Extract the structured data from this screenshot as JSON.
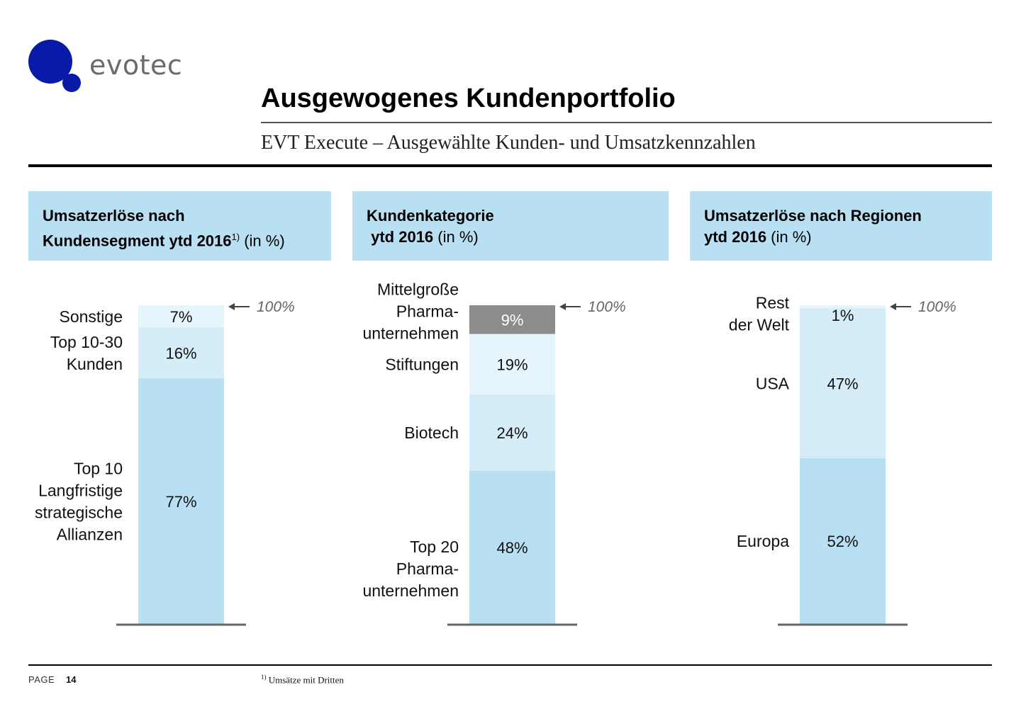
{
  "brand": {
    "name": "evotec",
    "color": "#0a1aa8"
  },
  "title": "Ausgewogenes Kundenportfolio",
  "subtitle": "EVT Execute – Ausgewählte Kunden- und Umsatzkennzahlen",
  "panels": [
    {
      "line1_bold": "Umsatzerlöse nach",
      "line2_bold": "Kundensegment ytd 2016",
      "line2_sup": "1)",
      "line2_rest": " (in %)"
    },
    {
      "line1_bold": "Kundenkategorie",
      "line2_bold": " ytd 2016",
      "line2_sup": "",
      "line2_rest": " (in %)"
    },
    {
      "line1_bold": "Umsatzerlöse nach Regionen",
      "line2_bold": "ytd 2016",
      "line2_sup": "",
      "line2_rest": " (in %)"
    }
  ],
  "chart_data": [
    {
      "type": "bar",
      "stacked": true,
      "total_label": "100%",
      "segments": [
        {
          "label": [
            "Top 10",
            "Langfristige",
            "strategische",
            "Allianzen"
          ],
          "value": 77,
          "value_label": "77%",
          "color": "#b8e0f2"
        },
        {
          "label": [
            "Top 10-30",
            "Kunden"
          ],
          "value": 16,
          "value_label": "16%",
          "color": "#d4edf8"
        },
        {
          "label": [
            "Sonstige"
          ],
          "value": 7,
          "value_label": "7%",
          "color": "#e6f4fb"
        }
      ]
    },
    {
      "type": "bar",
      "stacked": true,
      "total_label": "100%",
      "segments": [
        {
          "label": [
            "Top 20",
            "Pharma-",
            "unternehmen"
          ],
          "value": 48,
          "value_label": "48%",
          "color": "#b8e0f2"
        },
        {
          "label": [
            "Biotech"
          ],
          "value": 24,
          "value_label": "24%",
          "color": "#d4edf8"
        },
        {
          "label": [
            "Stiftungen"
          ],
          "value": 19,
          "value_label": "19%",
          "color": "#e6f4fb"
        },
        {
          "label": [
            "Mittelgroße",
            "Pharma-",
            "unternehmen"
          ],
          "value": 9,
          "value_label": "9%",
          "color": "#8c8c8c",
          "text_color": "#ffffff"
        }
      ]
    },
    {
      "type": "bar",
      "stacked": true,
      "total_label": "100%",
      "segments": [
        {
          "label": [
            "Europa"
          ],
          "value": 52,
          "value_label": "52%",
          "color": "#b8e0f2"
        },
        {
          "label": [
            "USA"
          ],
          "value": 47,
          "value_label": "47%",
          "color": "#d4edf8"
        },
        {
          "label": [
            "Rest",
            "der Welt"
          ],
          "value": 1,
          "value_label": "1%",
          "color": "#e6f4fb"
        }
      ]
    }
  ],
  "footer": {
    "page_label": "PAGE",
    "page_number": "14",
    "footnote_mark": "1)",
    "footnote_text": " Umsätze mit Dritten"
  }
}
